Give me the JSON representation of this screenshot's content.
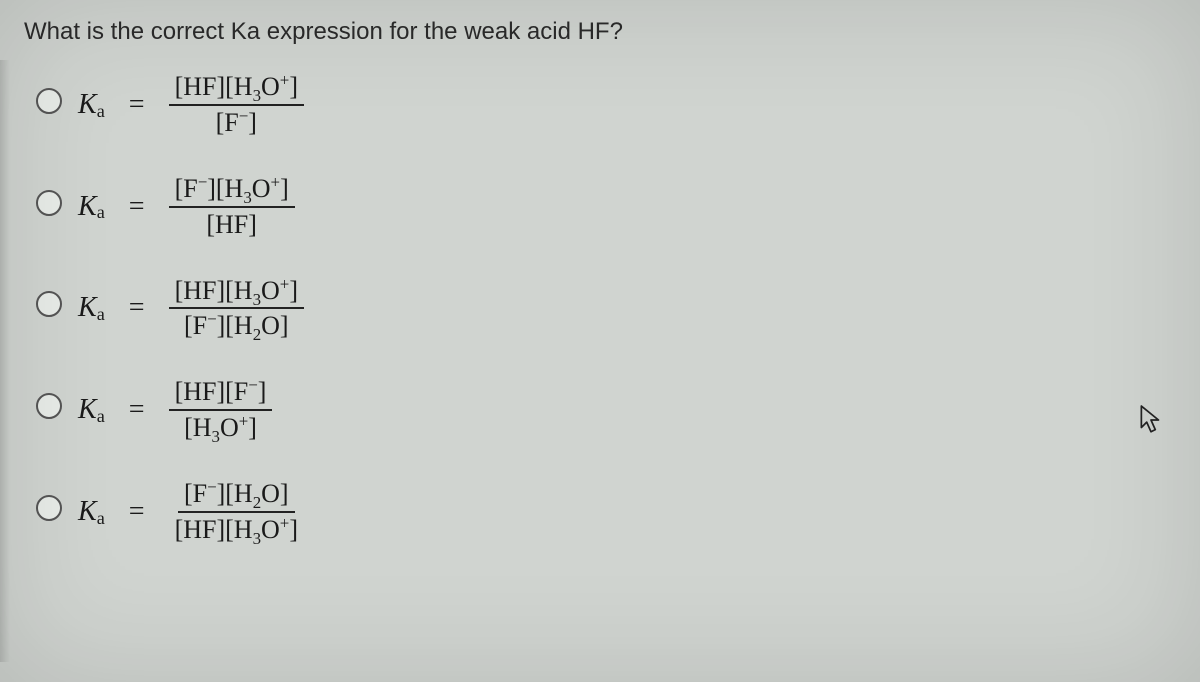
{
  "question": "What is the correct Ka expression for the weak acid HF?",
  "ka_symbol": "K",
  "ka_sub": "a",
  "equals": "=",
  "colors": {
    "background": "#d0d4d0",
    "text": "#1a1a1a",
    "question_text": "#2b2b2b",
    "rule": "#222222",
    "radio_border": "#555555"
  },
  "typography": {
    "question_fontsize": 24,
    "option_fontsize": 28,
    "fraction_fontsize": 26,
    "question_family": "Arial",
    "math_family": "Times New Roman"
  },
  "options": [
    {
      "numerator_html": "[HF][H<sub>3</sub>O<sup>+</sup>]",
      "denominator_html": "[F<sup>−</sup>]"
    },
    {
      "numerator_html": "[F<sup>−</sup>][H<sub>3</sub>O<sup>+</sup>]",
      "denominator_html": "[HF]"
    },
    {
      "numerator_html": "[HF][H<sub>3</sub>O<sup>+</sup>]",
      "denominator_html": "[F<sup>−</sup>][H<sub>2</sub>O]"
    },
    {
      "numerator_html": "[HF][F<sup>−</sup>]",
      "denominator_html": "[H<sub>3</sub>O<sup>+</sup>]"
    },
    {
      "numerator_html": "[F<sup>−</sup>][H<sub>2</sub>O]",
      "denominator_html": "[HF][H<sub>3</sub>O<sup>+</sup>]"
    }
  ],
  "cursor_icon_name": "cursor-icon"
}
